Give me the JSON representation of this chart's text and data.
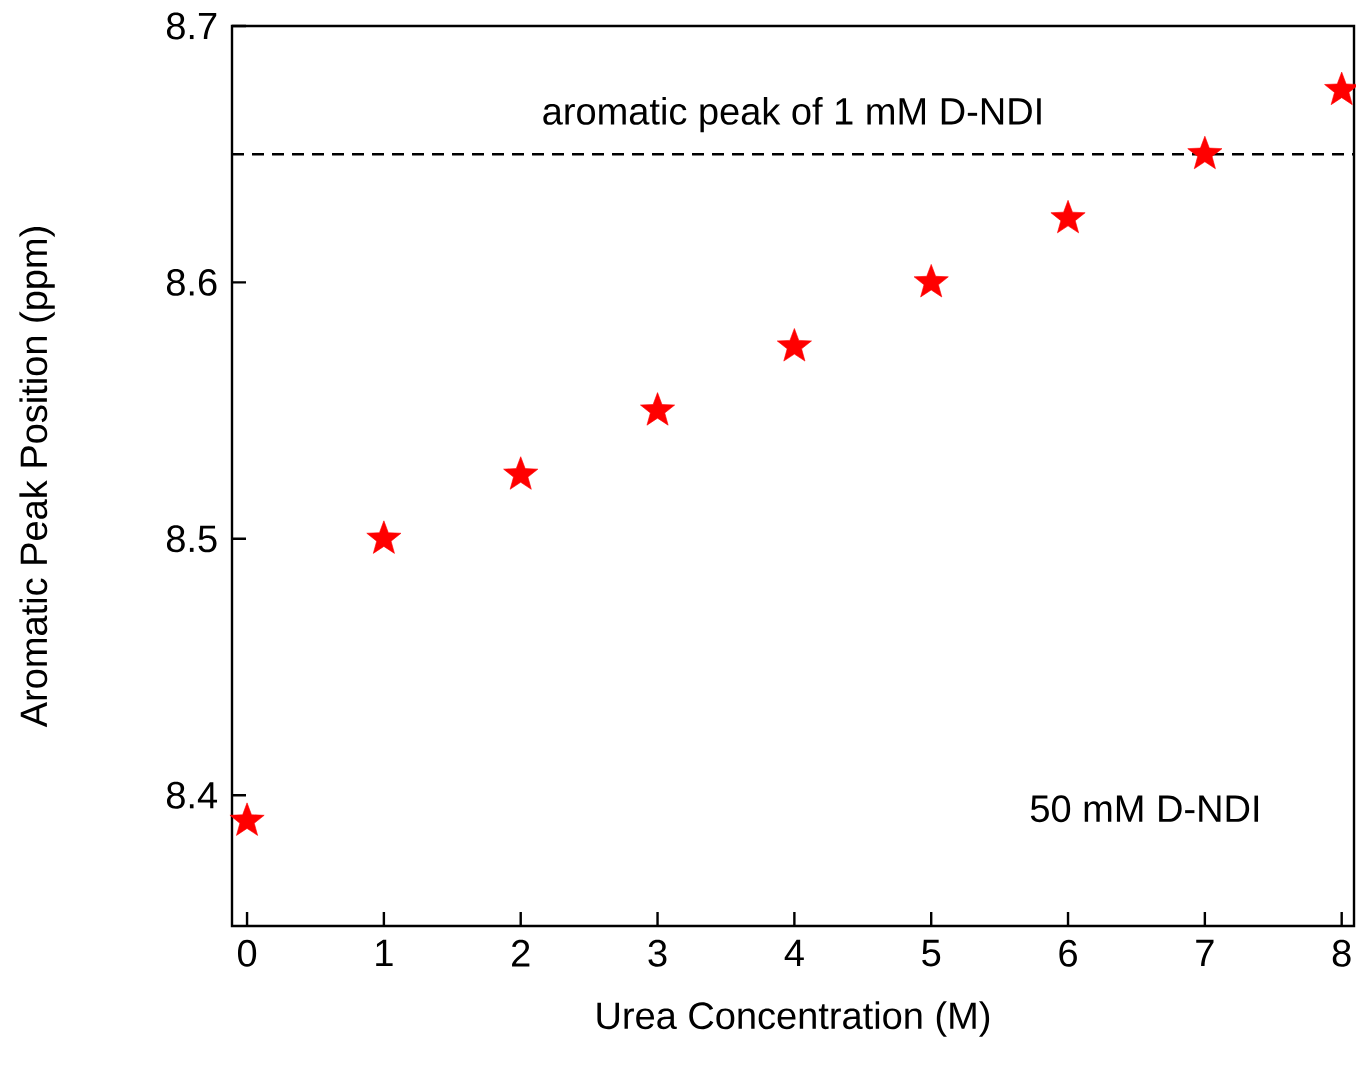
{
  "chart_data": {
    "type": "scatter",
    "xlabel": "Urea Concentration (M)",
    "ylabel": "Aromatic Peak Position (ppm)",
    "x": [
      0,
      1,
      2,
      3,
      4,
      5,
      6,
      7,
      8
    ],
    "series": [
      {
        "color": "#ff0000",
        "values": [
          8.39,
          8.5,
          8.525,
          8.55,
          8.575,
          8.6,
          8.625,
          8.65,
          8.675
        ]
      }
    ],
    "marker": "star",
    "xlim": [
      -0.11,
      8.09
    ],
    "ylim": [
      8.349,
      8.7
    ],
    "xticks": [
      0,
      1,
      2,
      3,
      4,
      5,
      6,
      7,
      8
    ],
    "yticks": [
      8.4,
      8.5,
      8.6,
      8.7
    ],
    "ref_lines": [
      {
        "axis": "y",
        "value": 8.65,
        "label": "aromatic peak of 1 mM D-NDI",
        "color": "#000000",
        "line_style": "dashed"
      }
    ],
    "annotations": [
      "50 mM D-NDI"
    ],
    "grid": false
  }
}
